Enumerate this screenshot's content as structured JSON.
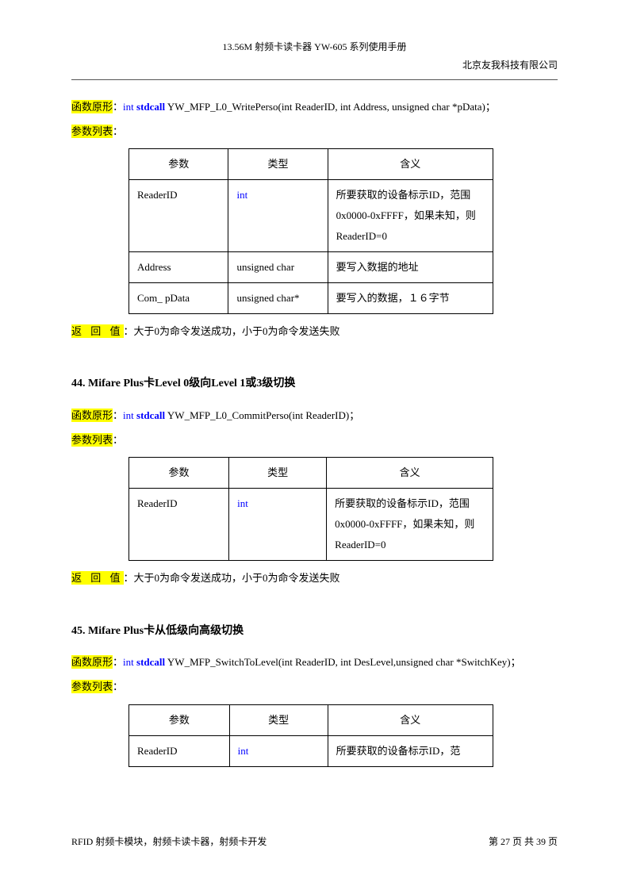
{
  "header": {
    "title": "13.56M 射频卡读卡器 YW-605 系列使用手册",
    "company": "北京友我科技有限公司"
  },
  "labels": {
    "funcProto": "函数原形",
    "paramList": "参数列表",
    "returnVal": "返 回 值",
    "col_param": "参数",
    "col_type": "类型",
    "col_mean": "含义",
    "colon": "：",
    "semicolon": "；"
  },
  "func1": {
    "sig_pre": "int ",
    "sig_bold": "stdcall",
    "sig_rest": " YW_MFP_L0_WritePerso(int ReaderID, int Address, unsigned char *pData)",
    "rows": [
      {
        "param": "ReaderID",
        "type": "int",
        "type_blue": true,
        "mean": "所要获取的设备标示ID，范围0x0000-0xFFFF，如果未知，则ReaderID=0"
      },
      {
        "param": "Address",
        "type": "unsigned char",
        "type_blue": false,
        "mean": "要写入数据的地址"
      },
      {
        "param": "Com_ pData",
        "type": "unsigned char*",
        "type_blue": false,
        "mean": "要写入的数据，１６字节"
      }
    ],
    "return": "大于0为命令发送成功，小于0为命令发送失败"
  },
  "sec44": {
    "heading": "44. Mifare Plus卡Level 0级向Level 1或3级切换",
    "sig_pre": "int ",
    "sig_bold": "stdcall",
    "sig_rest": " YW_MFP_L0_CommitPerso(int ReaderID)",
    "rows": [
      {
        "param": "ReaderID",
        "type": "int",
        "type_blue": true,
        "mean": "所要获取的设备标示ID，范围0x0000-0xFFFF，如果未知，则ReaderID=0"
      }
    ],
    "return": "大于0为命令发送成功，小于0为命令发送失败"
  },
  "sec45": {
    "heading": "45. Mifare Plus卡从低级向高级切换",
    "sig_pre": "int ",
    "sig_bold": "stdcall",
    "sig_rest": " YW_MFP_SwitchToLevel(int ReaderID, int DesLevel,unsigned char *SwitchKey)",
    "rows": [
      {
        "param": "ReaderID",
        "type": "int",
        "type_blue": true,
        "mean": "所要获取的设备标示ID，范"
      }
    ]
  },
  "footer": {
    "left": "RFID 射频卡模块，射频卡读卡器，射频卡开发",
    "right": "第 27 页 共 39 页"
  },
  "colors": {
    "highlight": "#ffff00",
    "keyword": "#0000ff",
    "text": "#000000",
    "background": "#ffffff",
    "border": "#000000"
  },
  "typography": {
    "body_fontsize_pt": 10,
    "heading_fontsize_pt": 11,
    "line_height": 2.2,
    "font_family": "SimSun"
  }
}
